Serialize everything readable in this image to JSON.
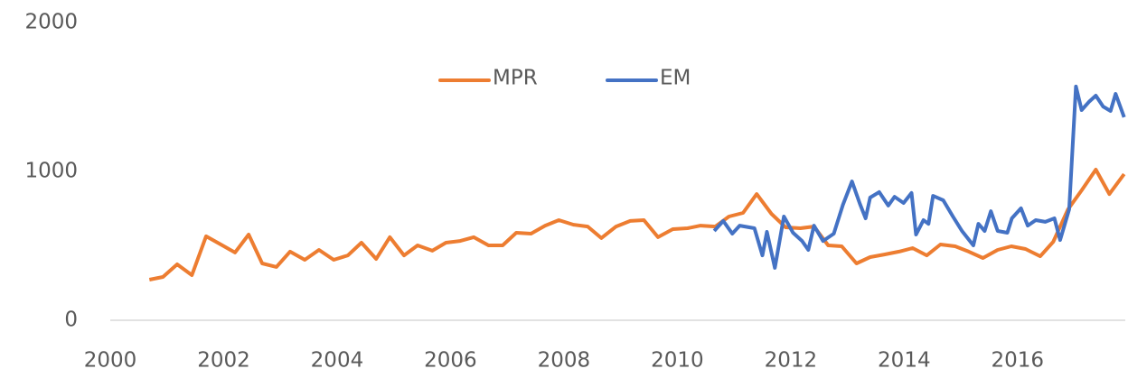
{
  "chart_data": {
    "type": "line",
    "xlim": [
      2000,
      2017.9
    ],
    "xticks": [
      2000,
      2002,
      2004,
      2006,
      2008,
      2010,
      2012,
      2014,
      2016
    ],
    "ylim": [
      0,
      2000
    ],
    "yticks": [
      0,
      1000,
      2000
    ],
    "legend": "top",
    "series": [
      {
        "name": "MPR",
        "color": "#ed7d31",
        "x": [
          2000.69,
          2000.93,
          2001.18,
          2001.44,
          2001.69,
          2001.95,
          2002.2,
          2002.44,
          2002.68,
          2002.93,
          2003.17,
          2003.43,
          2003.68,
          2003.94,
          2004.19,
          2004.43,
          2004.69,
          2004.93,
          2005.18,
          2005.42,
          2005.68,
          2005.92,
          2006.17,
          2006.41,
          2006.67,
          2006.92,
          2007.16,
          2007.42,
          2007.67,
          2007.91,
          2008.17,
          2008.42,
          2008.66,
          2008.92,
          2009.17,
          2009.41,
          2009.66,
          2009.92,
          2010.18,
          2010.41,
          2010.67,
          2010.91,
          2011.16,
          2011.4,
          2011.66,
          2011.91,
          2012.17,
          2012.41,
          2012.66,
          2012.9,
          2013.16,
          2013.4,
          2013.65,
          2013.91,
          2014.15,
          2014.4,
          2014.64,
          2014.9,
          2015.14,
          2015.39,
          2015.65,
          2015.89,
          2016.14,
          2016.4,
          2016.63,
          2016.89,
          2017.13,
          2017.38,
          2017.62,
          2017.88
        ],
        "values": [
          273,
          291,
          376,
          303,
          564,
          509,
          455,
          576,
          382,
          358,
          461,
          406,
          473,
          406,
          436,
          521,
          412,
          558,
          436,
          503,
          467,
          521,
          533,
          558,
          503,
          503,
          588,
          582,
          636,
          673,
          642,
          630,
          552,
          630,
          667,
          673,
          558,
          612,
          618,
          636,
          630,
          697,
          721,
          848,
          715,
          624,
          618,
          630,
          503,
          497,
          382,
          424,
          442,
          461,
          485,
          436,
          509,
          497,
          461,
          418,
          473,
          497,
          479,
          430,
          527,
          745,
          873,
          1012,
          848,
          982
        ]
      },
      {
        "name": "EM",
        "color": "#4472c4",
        "x": [
          2010.65,
          2010.81,
          2010.97,
          2011.1,
          2011.36,
          2011.5,
          2011.58,
          2011.72,
          2011.88,
          2012.04,
          2012.2,
          2012.31,
          2012.41,
          2012.57,
          2012.76,
          2012.92,
          2013.08,
          2013.22,
          2013.32,
          2013.4,
          2013.56,
          2013.72,
          2013.83,
          2013.99,
          2014.13,
          2014.21,
          2014.34,
          2014.43,
          2014.51,
          2014.69,
          2014.86,
          2015.02,
          2015.22,
          2015.31,
          2015.42,
          2015.53,
          2015.65,
          2015.82,
          2015.9,
          2016.06,
          2016.18,
          2016.32,
          2016.49,
          2016.65,
          2016.75,
          2016.91,
          2017.03,
          2017.13,
          2017.26,
          2017.38,
          2017.51,
          2017.64,
          2017.73,
          2017.88
        ],
        "values": [
          600,
          667,
          582,
          636,
          618,
          436,
          594,
          352,
          697,
          588,
          533,
          473,
          636,
          533,
          582,
          776,
          933,
          782,
          685,
          824,
          861,
          770,
          830,
          788,
          855,
          576,
          673,
          648,
          836,
          806,
          697,
          600,
          503,
          648,
          600,
          733,
          600,
          588,
          685,
          752,
          636,
          673,
          661,
          685,
          539,
          745,
          1570,
          1412,
          1467,
          1509,
          1436,
          1406,
          1521,
          1364
        ]
      }
    ]
  }
}
